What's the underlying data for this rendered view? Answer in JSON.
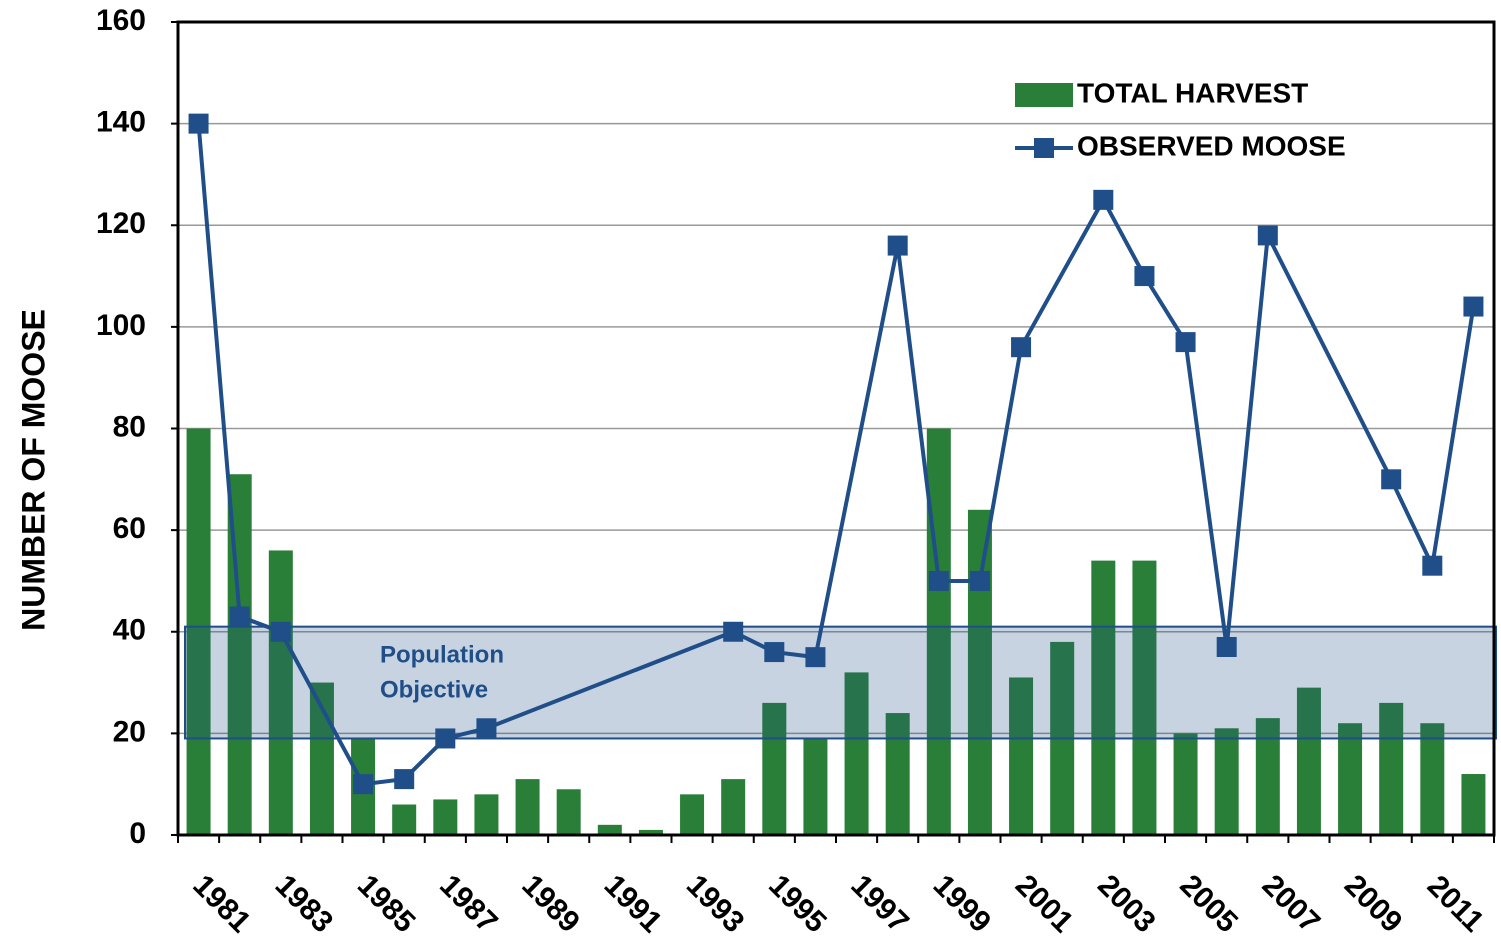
{
  "chart_data": {
    "type": "bar",
    "y_label": "NUMBER OF MOOSE",
    "categories": [
      "1981",
      null,
      "1983",
      null,
      "1985",
      null,
      "1987",
      null,
      "1989",
      null,
      "1991",
      null,
      "1993",
      null,
      "1995",
      null,
      "1997",
      null,
      "1999",
      null,
      "2001",
      null,
      "2003",
      null,
      "2005",
      null,
      "2007",
      null,
      "2009",
      null,
      "2011",
      null
    ],
    "series": [
      {
        "name": "TOTAL HARVEST",
        "type": "bar",
        "color": "#2a7f38",
        "values": [
          80,
          71,
          56,
          30,
          19,
          6,
          7,
          8,
          11,
          9,
          2,
          1,
          8,
          11,
          26,
          19,
          32,
          24,
          80,
          64,
          31,
          38,
          54,
          54,
          20,
          21,
          23,
          29,
          22,
          26,
          22,
          12
        ]
      },
      {
        "name": "OBSERVED MOOSE",
        "type": "line",
        "color": "#1f4e89",
        "x": [
          1981,
          1982,
          1983,
          1985,
          1986,
          1987,
          1988,
          1994,
          1995,
          1996,
          1998,
          1999,
          2000,
          2001,
          2003,
          2004,
          2005,
          2006,
          2007,
          2010,
          2011,
          2012
        ],
        "values": [
          140,
          43,
          40,
          10,
          11,
          19,
          21,
          40,
          36,
          35,
          116,
          50,
          50,
          96,
          125,
          110,
          97,
          37,
          118,
          70,
          53,
          104
        ]
      }
    ],
    "band": {
      "label": [
        "Population",
        "Objective"
      ],
      "range": [
        19,
        41
      ],
      "color": "#1f4e89"
    },
    "ylim": [
      0,
      160
    ],
    "yticks": [
      0,
      20,
      40,
      60,
      80,
      100,
      120,
      140,
      160
    ],
    "grid": true
  }
}
